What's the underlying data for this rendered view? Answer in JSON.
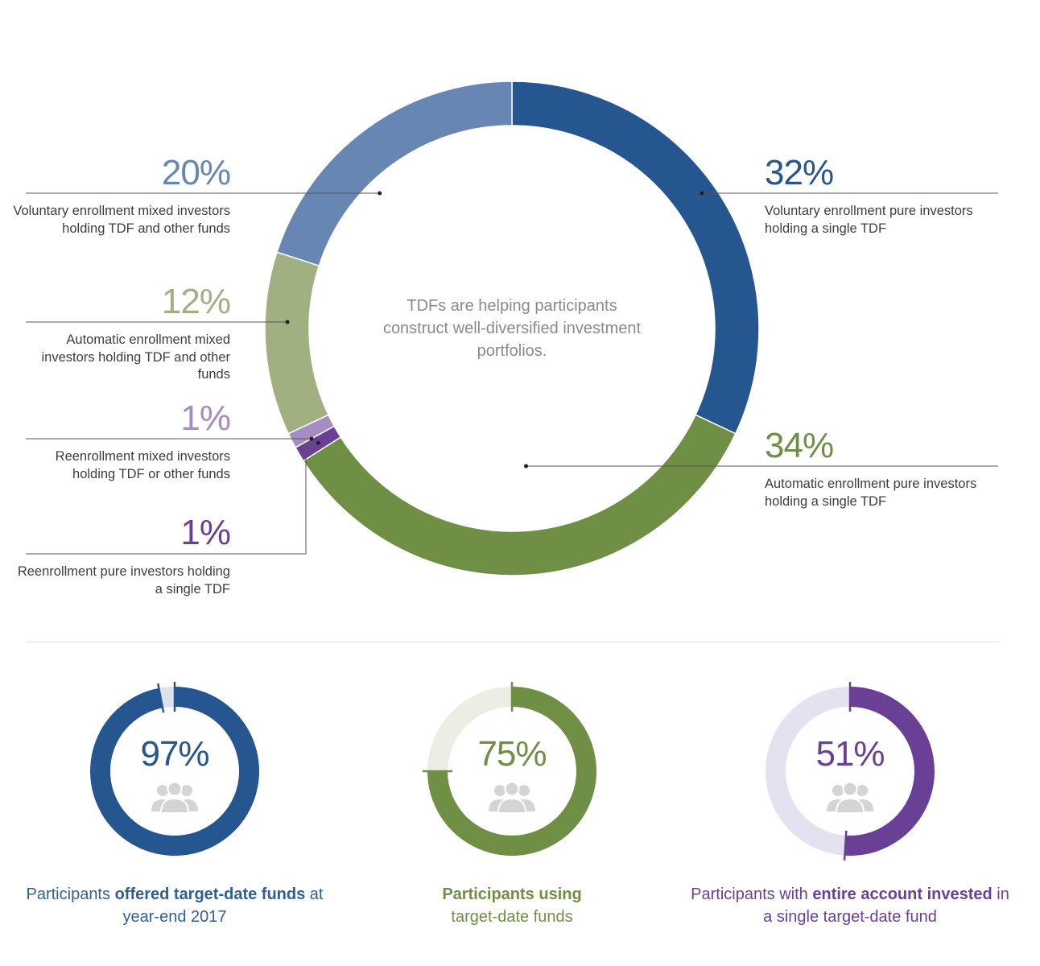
{
  "chart_data": [
    {
      "type": "pie",
      "subtype": "donut",
      "center_text": "TDFs are helping participants construct well-diversified investment portfolios.",
      "slices": [
        {
          "value": 32,
          "label": "32%",
          "description": "Voluntary enrollment pure investors holding a single TDF",
          "color": "#26568f"
        },
        {
          "value": 34,
          "label": "34%",
          "description": "Automatic enrollment pure investors holding a single TDF",
          "color": "#6f8f45"
        },
        {
          "value": 1,
          "label": "1%",
          "description": "Reenrollment pure investors holding a single TDF",
          "color": "#6a3f96"
        },
        {
          "value": 1,
          "label": "1%",
          "description": "Reenrollment mixed investors holding TDF or other funds",
          "color": "#a58cc4"
        },
        {
          "value": 12,
          "label": "12%",
          "description": "Automatic enrollment mixed investors holding TDF and other funds",
          "color": "#a0b080"
        },
        {
          "value": 20,
          "label": "20%",
          "description": "Voluntary enrollment mixed investors holding TDF and other funds",
          "color": "#6886b3"
        }
      ]
    },
    {
      "type": "pie",
      "subtype": "progress-ring",
      "value": 97,
      "label": "97%",
      "caption": [
        "Participants ",
        "offered target-date funds",
        " at year-end 2017"
      ],
      "color": "#26568f",
      "track_color": "#dce3ee"
    },
    {
      "type": "pie",
      "subtype": "progress-ring",
      "value": 75,
      "label": "75%",
      "caption": [
        "",
        "Participants using",
        " target-date funds"
      ],
      "color": "#6f8f45",
      "track_color": "#eaeee3"
    },
    {
      "type": "pie",
      "subtype": "progress-ring",
      "value": 51,
      "label": "51%",
      "caption": [
        "Participants with ",
        "entire account invested",
        " in a single target-date fund"
      ],
      "color": "#6a3f96",
      "track_color": "#e6e1f0"
    }
  ]
}
